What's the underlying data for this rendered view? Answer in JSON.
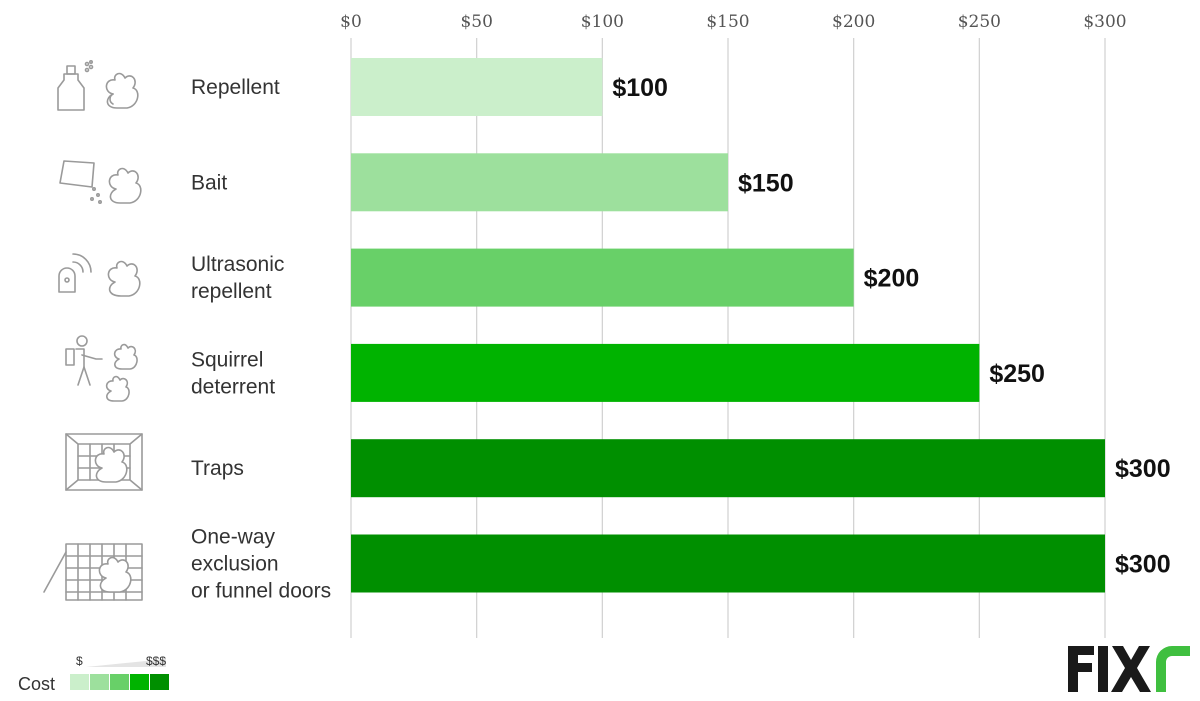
{
  "chart_data": {
    "type": "bar",
    "orientation": "horizontal",
    "categories": [
      "Repellent",
      "Bait",
      "Ultrasonic repellent",
      "Squirrel deterrent",
      "Traps",
      "One-way exclusion or funnel doors"
    ],
    "category_lines": [
      [
        "Repellent"
      ],
      [
        "Bait"
      ],
      [
        "Ultrasonic",
        "repellent"
      ],
      [
        "Squirrel",
        "deterrent"
      ],
      [
        "Traps"
      ],
      [
        "One-way",
        "exclusion",
        "or funnel doors"
      ]
    ],
    "values": [
      100,
      150,
      200,
      250,
      300,
      300
    ],
    "value_labels": [
      "$100",
      "$150",
      "$200",
      "$250",
      "$300",
      "$300"
    ],
    "bar_colors": [
      "#cbefcb",
      "#9de09d",
      "#68d068",
      "#00b300",
      "#008f00",
      "#008f00"
    ],
    "icons": [
      "spray-squirrel-icon",
      "bait-squirrel-icon",
      "ultrasonic-squirrel-icon",
      "exterminator-squirrel-icon",
      "trap-squirrel-icon",
      "exclusion-door-squirrel-icon"
    ],
    "xlim": [
      0,
      300
    ],
    "xticks": [
      0,
      50,
      100,
      150,
      200,
      250,
      300
    ],
    "xtick_labels": [
      "$0",
      "$50",
      "$100",
      "$150",
      "$200",
      "$250",
      "$300"
    ],
    "xaxis_position": "top",
    "grid": true,
    "title": "",
    "xlabel": "",
    "ylabel": ""
  },
  "legend": {
    "title": "Cost",
    "low_label": "$",
    "high_label": "$$$",
    "colors": [
      "#cbefcb",
      "#9de09d",
      "#68d068",
      "#00b300",
      "#008f00"
    ]
  },
  "logo": {
    "text": "FIXR",
    "name": "fixr-logo"
  }
}
